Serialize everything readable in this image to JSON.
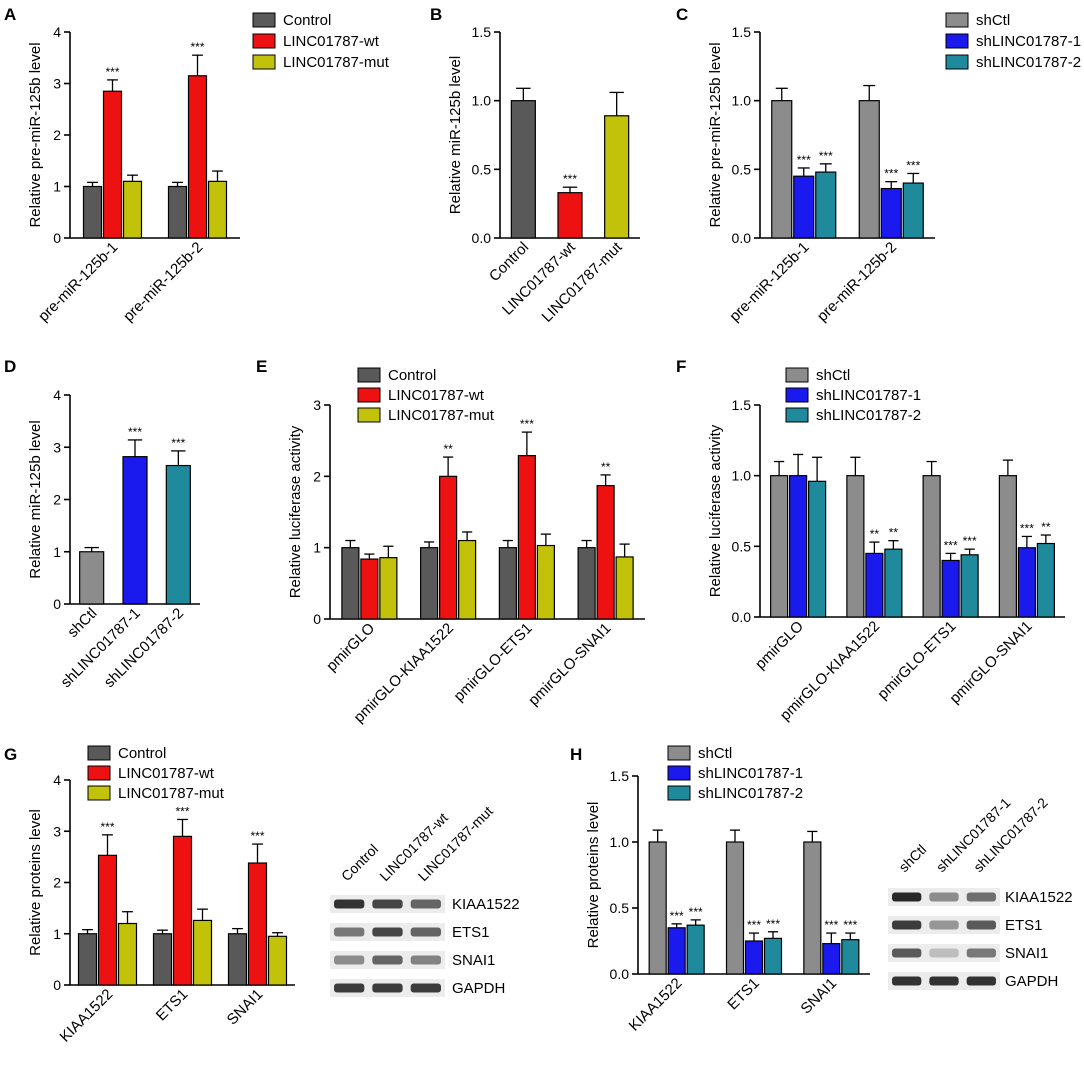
{
  "colors": {
    "control": "#595959",
    "wt": "#ee1111",
    "mut": "#c2c20a",
    "shctl": "#8c8c8c",
    "sh1": "#1a1aee",
    "sh2": "#1f8a9b"
  },
  "chart_data": [
    {
      "id": "A",
      "panel_label": "A",
      "type": "bar",
      "ylabel": "Relative pre-miR-125b level",
      "ylim": [
        0,
        4
      ],
      "ticks": [
        "0",
        "1",
        "2",
        "3",
        "4"
      ],
      "categories": [
        "pre-miR-125b-1",
        "pre-miR-125b-2"
      ],
      "series": [
        {
          "name": "Control",
          "color": "#595959",
          "values": [
            1.0,
            1.0
          ],
          "errors": [
            0.08,
            0.08
          ],
          "sig": [
            "",
            ""
          ]
        },
        {
          "name": "LINC01787-wt",
          "color": "#ee1111",
          "values": [
            2.85,
            3.15
          ],
          "errors": [
            0.22,
            0.4
          ],
          "sig": [
            "***",
            "***"
          ]
        },
        {
          "name": "LINC01787-mut",
          "color": "#c2c20a",
          "values": [
            1.1,
            1.1
          ],
          "errors": [
            0.12,
            0.2
          ],
          "sig": [
            "",
            ""
          ]
        }
      ],
      "legend": "top-right"
    },
    {
      "id": "B",
      "panel_label": "B",
      "type": "bar",
      "ylabel": "Relative miR-125b level",
      "ylim": [
        0,
        1.5
      ],
      "ticks": [
        "0.0",
        "0.5",
        "1.0",
        "1.5"
      ],
      "categories": [
        "Control",
        "LINC01787-wt",
        "LINC01787-mut"
      ],
      "series": [
        {
          "name": "Control",
          "color": "#595959",
          "values": [
            1.0,
            null,
            null
          ],
          "errors": [
            0.09,
            null,
            null
          ],
          "sig": [
            "",
            "",
            ""
          ]
        },
        {
          "name": "LINC01787-wt",
          "color": "#ee1111",
          "values": [
            null,
            0.33,
            null
          ],
          "errors": [
            null,
            0.04,
            null
          ],
          "sig": [
            "",
            "***",
            ""
          ]
        },
        {
          "name": "LINC01787-mut",
          "color": "#c2c20a",
          "values": [
            null,
            null,
            0.89
          ],
          "errors": [
            null,
            null,
            0.17
          ],
          "sig": [
            "",
            "",
            ""
          ]
        }
      ],
      "legend": "none"
    },
    {
      "id": "C",
      "panel_label": "C",
      "type": "bar",
      "ylabel": "Relative pre-miR-125b level",
      "ylim": [
        0,
        1.5
      ],
      "ticks": [
        "0.0",
        "0.5",
        "1.0",
        "1.5"
      ],
      "categories": [
        "pre-miR-125b-1",
        "pre-miR-125b-2"
      ],
      "series": [
        {
          "name": "shCtl",
          "color": "#8c8c8c",
          "values": [
            1.0,
            1.0
          ],
          "errors": [
            0.09,
            0.11
          ],
          "sig": [
            "",
            ""
          ]
        },
        {
          "name": "shLINC01787-1",
          "color": "#1a1aee",
          "values": [
            0.45,
            0.36
          ],
          "errors": [
            0.06,
            0.05
          ],
          "sig": [
            "***",
            "***"
          ]
        },
        {
          "name": "shLINC01787-2",
          "color": "#1f8a9b",
          "values": [
            0.48,
            0.4
          ],
          "errors": [
            0.06,
            0.07
          ],
          "sig": [
            "***",
            "***"
          ]
        }
      ],
      "legend": "top-right"
    },
    {
      "id": "D",
      "panel_label": "D",
      "type": "bar",
      "ylabel": "Relative miR-125b level",
      "ylim": [
        0,
        4
      ],
      "ticks": [
        "0",
        "1",
        "2",
        "3",
        "4"
      ],
      "categories": [
        "shCtl",
        "shLINC01787-1",
        "shLINC01787-2"
      ],
      "series": [
        {
          "name": "shCtl",
          "color": "#8c8c8c",
          "values": [
            1.0,
            null,
            null
          ],
          "errors": [
            0.08,
            null,
            null
          ],
          "sig": [
            "",
            "",
            ""
          ]
        },
        {
          "name": "shLINC01787-1",
          "color": "#1a1aee",
          "values": [
            null,
            2.82,
            null
          ],
          "errors": [
            null,
            0.32,
            null
          ],
          "sig": [
            "",
            "***",
            ""
          ]
        },
        {
          "name": "shLINC01787-2",
          "color": "#1f8a9b",
          "values": [
            null,
            null,
            2.65
          ],
          "errors": [
            null,
            null,
            0.28
          ],
          "sig": [
            "",
            "",
            "***"
          ]
        }
      ],
      "legend": "none"
    },
    {
      "id": "E",
      "panel_label": "E",
      "type": "bar",
      "ylabel": "Relative luciferase activity",
      "ylim": [
        0,
        3
      ],
      "ticks": [
        "0",
        "1",
        "2",
        "3"
      ],
      "categories": [
        "pmirGLO",
        "pmirGLO-KIAA1522",
        "pmirGLO-ETS1",
        "pmirGLO-SNAI1"
      ],
      "series": [
        {
          "name": "Control",
          "color": "#595959",
          "values": [
            1.0,
            1.0,
            1.0,
            1.0
          ],
          "errors": [
            0.1,
            0.08,
            0.1,
            0.1
          ],
          "sig": [
            "",
            "",
            "",
            ""
          ]
        },
        {
          "name": "LINC01787-wt",
          "color": "#ee1111",
          "values": [
            0.84,
            2.0,
            2.29,
            1.87
          ],
          "errors": [
            0.07,
            0.27,
            0.33,
            0.15
          ],
          "sig": [
            "",
            "**",
            "***",
            "**"
          ]
        },
        {
          "name": "LINC01787-mut",
          "color": "#c2c20a",
          "values": [
            0.86,
            1.1,
            1.03,
            0.87
          ],
          "errors": [
            0.16,
            0.12,
            0.16,
            0.18
          ],
          "sig": [
            "",
            "",
            "",
            ""
          ]
        }
      ],
      "legend": "top-left"
    },
    {
      "id": "F",
      "panel_label": "F",
      "type": "bar",
      "ylabel": "Relative luciferase activity",
      "ylim": [
        0,
        1.5
      ],
      "ticks": [
        "0.0",
        "0.5",
        "1.0",
        "1.5"
      ],
      "categories": [
        "pmirGLO",
        "pmirGLO-KIAA1522",
        "pmirGLO-ETS1",
        "pmirGLO-SNAI1"
      ],
      "series": [
        {
          "name": "shCtl",
          "color": "#8c8c8c",
          "values": [
            1.0,
            1.0,
            1.0,
            1.0
          ],
          "errors": [
            0.1,
            0.13,
            0.1,
            0.11
          ],
          "sig": [
            "",
            "",
            "",
            ""
          ]
        },
        {
          "name": "shLINC01787-1",
          "color": "#1a1aee",
          "values": [
            1.0,
            0.45,
            0.4,
            0.49
          ],
          "errors": [
            0.15,
            0.08,
            0.05,
            0.08
          ],
          "sig": [
            "",
            "**",
            "***",
            "***"
          ]
        },
        {
          "name": "shLINC01787-2",
          "color": "#1f8a9b",
          "values": [
            0.96,
            0.48,
            0.44,
            0.52
          ],
          "errors": [
            0.17,
            0.06,
            0.04,
            0.06
          ],
          "sig": [
            "",
            "**",
            "***",
            "**"
          ]
        }
      ],
      "legend": "top-left"
    },
    {
      "id": "G",
      "panel_label": "G",
      "type": "bar",
      "ylabel": "Relative proteins level",
      "ylim": [
        0,
        4
      ],
      "ticks": [
        "0",
        "1",
        "2",
        "3",
        "4"
      ],
      "categories": [
        "KIAA1522",
        "ETS1",
        "SNAI1"
      ],
      "series": [
        {
          "name": "Control",
          "color": "#595959",
          "values": [
            1.0,
            1.0,
            1.0
          ],
          "errors": [
            0.08,
            0.07,
            0.1
          ],
          "sig": [
            "",
            "",
            ""
          ]
        },
        {
          "name": "LINC01787-wt",
          "color": "#ee1111",
          "values": [
            2.53,
            2.9,
            2.38
          ],
          "errors": [
            0.4,
            0.33,
            0.37
          ],
          "sig": [
            "***",
            "***",
            "***"
          ]
        },
        {
          "name": "LINC01787-mut",
          "color": "#c2c20a",
          "values": [
            1.2,
            1.26,
            0.95
          ],
          "errors": [
            0.23,
            0.22,
            0.07
          ],
          "sig": [
            "",
            "",
            ""
          ]
        }
      ],
      "legend": "top-left"
    },
    {
      "id": "H",
      "panel_label": "H",
      "type": "bar",
      "ylabel": "Relative proteins level",
      "ylim": [
        0,
        1.5
      ],
      "ticks": [
        "0.0",
        "0.5",
        "1.0",
        "1.5"
      ],
      "categories": [
        "KIAA1522",
        "ETS1",
        "SNAI1"
      ],
      "series": [
        {
          "name": "shCtl",
          "color": "#8c8c8c",
          "values": [
            1.0,
            1.0,
            1.0
          ],
          "errors": [
            0.09,
            0.09,
            0.08
          ],
          "sig": [
            "",
            "",
            ""
          ]
        },
        {
          "name": "shLINC01787-1",
          "color": "#1a1aee",
          "values": [
            0.35,
            0.25,
            0.23
          ],
          "errors": [
            0.03,
            0.06,
            0.08
          ],
          "sig": [
            "***",
            "***",
            "***"
          ]
        },
        {
          "name": "shLINC01787-2",
          "color": "#1f8a9b",
          "values": [
            0.37,
            0.27,
            0.26
          ],
          "errors": [
            0.04,
            0.05,
            0.05
          ],
          "sig": [
            "***",
            "***",
            "***"
          ]
        }
      ],
      "legend": "top-left"
    }
  ],
  "blots": [
    {
      "id": "G-blot",
      "lanes": [
        "Control",
        "LINC01787-wt",
        "LINC01787-mut"
      ],
      "proteins": [
        "KIAA1522",
        "ETS1",
        "SNAI1",
        "GAPDH"
      ],
      "band_intensity": [
        [
          0.9,
          0.8,
          0.65
        ],
        [
          0.55,
          0.8,
          0.65
        ],
        [
          0.45,
          0.65,
          0.5
        ],
        [
          0.85,
          0.85,
          0.85
        ]
      ]
    },
    {
      "id": "H-blot",
      "lanes": [
        "shCtl",
        "shLINC01787-1",
        "shLINC01787-2"
      ],
      "proteins": [
        "KIAA1522",
        "ETS1",
        "SNAI1",
        "GAPDH"
      ],
      "band_intensity": [
        [
          0.95,
          0.45,
          0.6
        ],
        [
          0.85,
          0.4,
          0.7
        ],
        [
          0.7,
          0.2,
          0.55
        ],
        [
          0.9,
          0.9,
          0.9
        ]
      ]
    }
  ]
}
